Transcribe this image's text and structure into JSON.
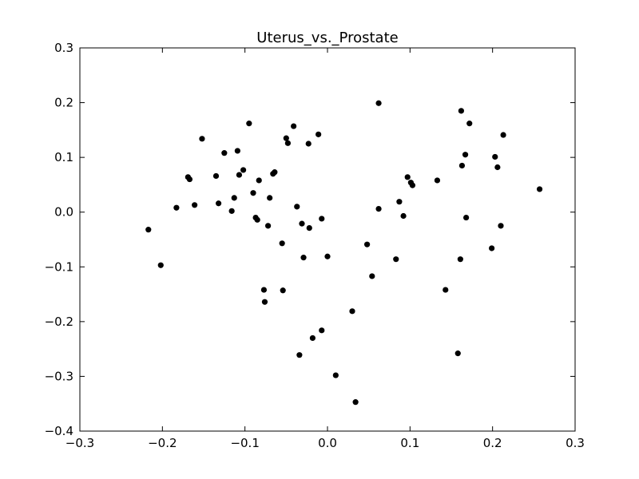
{
  "chart_data": {
    "type": "scatter",
    "title": "Uterus_vs._Prostate",
    "xlabel": "",
    "ylabel": "",
    "xlim": [
      -0.3,
      0.3
    ],
    "ylim": [
      -0.4,
      0.3
    ],
    "x_ticks": [
      -0.3,
      -0.2,
      -0.1,
      0.0,
      0.1,
      0.2,
      0.3
    ],
    "y_ticks": [
      -0.4,
      -0.3,
      -0.2,
      -0.1,
      0.0,
      0.1,
      0.2,
      0.3
    ],
    "x_tick_labels": [
      "−0.3",
      "−0.2",
      "−0.1",
      "0.0",
      "0.1",
      "0.2",
      "0.3"
    ],
    "y_tick_labels": [
      "−0.4",
      "−0.3",
      "−0.2",
      "−0.1",
      "0.0",
      "0.1",
      "0.2",
      "0.3"
    ],
    "grid": false,
    "marker_color": "#000000",
    "points": [
      [
        -0.217,
        -0.032
      ],
      [
        -0.202,
        -0.097
      ],
      [
        -0.183,
        0.008
      ],
      [
        -0.169,
        0.064
      ],
      [
        -0.167,
        0.06
      ],
      [
        -0.161,
        0.013
      ],
      [
        -0.152,
        0.134
      ],
      [
        -0.135,
        0.066
      ],
      [
        -0.132,
        0.016
      ],
      [
        -0.125,
        0.108
      ],
      [
        -0.116,
        0.002
      ],
      [
        -0.113,
        0.026
      ],
      [
        -0.109,
        0.112
      ],
      [
        -0.107,
        0.068
      ],
      [
        -0.102,
        0.077
      ],
      [
        -0.095,
        0.162
      ],
      [
        -0.09,
        0.035
      ],
      [
        -0.087,
        -0.01
      ],
      [
        -0.085,
        -0.014
      ],
      [
        -0.083,
        0.058
      ],
      [
        -0.077,
        -0.142
      ],
      [
        -0.076,
        -0.164
      ],
      [
        -0.072,
        -0.025
      ],
      [
        -0.07,
        0.026
      ],
      [
        -0.066,
        0.07
      ],
      [
        -0.064,
        0.073
      ],
      [
        -0.055,
        -0.057
      ],
      [
        -0.054,
        -0.143
      ],
      [
        -0.05,
        0.135
      ],
      [
        -0.048,
        0.126
      ],
      [
        -0.041,
        0.157
      ],
      [
        -0.037,
        0.01
      ],
      [
        -0.034,
        -0.261
      ],
      [
        -0.031,
        -0.021
      ],
      [
        -0.029,
        -0.083
      ],
      [
        -0.023,
        0.125
      ],
      [
        -0.022,
        -0.029
      ],
      [
        -0.018,
        -0.23
      ],
      [
        -0.011,
        0.142
      ],
      [
        -0.007,
        -0.012
      ],
      [
        -0.007,
        -0.216
      ],
      [
        0.0,
        -0.081
      ],
      [
        0.01,
        -0.298
      ],
      [
        0.03,
        -0.181
      ],
      [
        0.034,
        -0.347
      ],
      [
        0.048,
        -0.059
      ],
      [
        0.054,
        -0.117
      ],
      [
        0.062,
        0.199
      ],
      [
        0.062,
        0.006
      ],
      [
        0.083,
        -0.086
      ],
      [
        0.087,
        0.019
      ],
      [
        0.092,
        -0.007
      ],
      [
        0.097,
        0.064
      ],
      [
        0.101,
        0.054
      ],
      [
        0.103,
        0.049
      ],
      [
        0.133,
        0.058
      ],
      [
        0.143,
        -0.142
      ],
      [
        0.158,
        -0.258
      ],
      [
        0.161,
        -0.086
      ],
      [
        0.162,
        0.185
      ],
      [
        0.163,
        0.085
      ],
      [
        0.167,
        0.105
      ],
      [
        0.168,
        -0.01
      ],
      [
        0.172,
        0.162
      ],
      [
        0.199,
        -0.066
      ],
      [
        0.203,
        0.101
      ],
      [
        0.206,
        0.082
      ],
      [
        0.21,
        -0.025
      ],
      [
        0.213,
        0.141
      ],
      [
        0.257,
        0.042
      ]
    ]
  }
}
